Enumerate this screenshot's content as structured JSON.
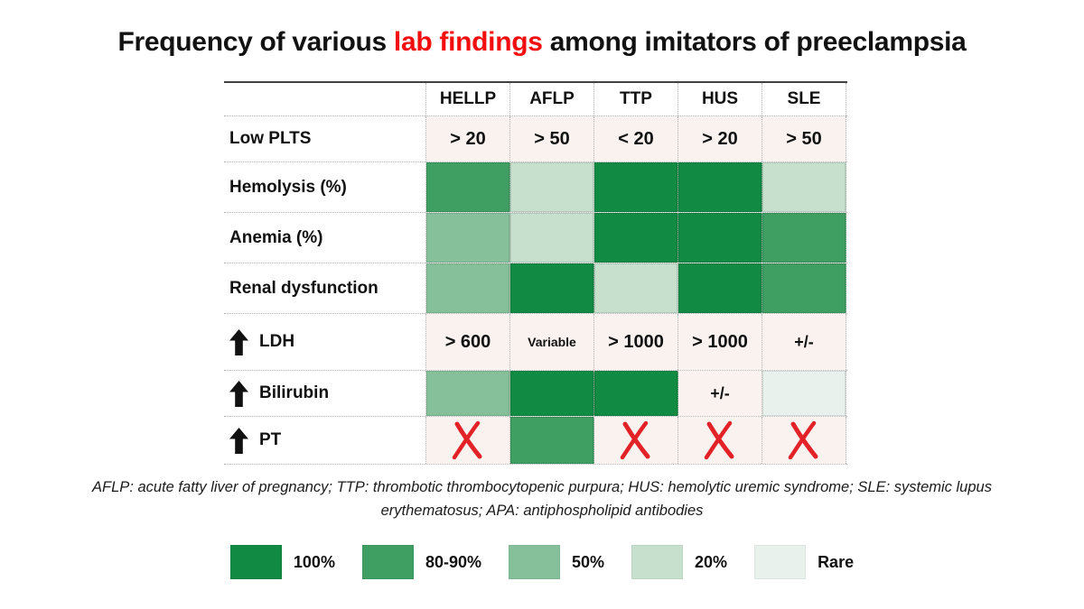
{
  "title": {
    "pre": "Frequency of various ",
    "highlight": "lab findings",
    "post": " among imitators of preeclampsia"
  },
  "colors": {
    "levels": {
      "100": "#118a43",
      "80-90": "#3f9e62",
      "50": "#86c09a",
      "20": "#c7e0ce",
      "rare": "#e9f1ec"
    },
    "value_bg": "#f9f2ef",
    "x_red": "#e32227",
    "title_red": "#f40d0d",
    "arrow_black": "#111111"
  },
  "table": {
    "columns": [
      "HELLP",
      "AFLP",
      "TTP",
      "HUS",
      "SLE"
    ],
    "rows": [
      {
        "label": "Low PLTS",
        "arrow": false,
        "cells": [
          {
            "t": "val",
            "text": "> 20"
          },
          {
            "t": "val",
            "text": "> 50"
          },
          {
            "t": "val",
            "text": "< 20"
          },
          {
            "t": "val",
            "text": "> 20"
          },
          {
            "t": "val",
            "text": "> 50"
          }
        ]
      },
      {
        "label": "Hemolysis (%)",
        "arrow": false,
        "cells": [
          {
            "t": "lvl",
            "level": "80-90"
          },
          {
            "t": "lvl",
            "level": "20"
          },
          {
            "t": "lvl",
            "level": "100"
          },
          {
            "t": "lvl",
            "level": "100"
          },
          {
            "t": "lvl",
            "level": "20"
          }
        ]
      },
      {
        "label": "Anemia (%)",
        "arrow": false,
        "cells": [
          {
            "t": "lvl",
            "level": "50"
          },
          {
            "t": "lvl",
            "level": "20"
          },
          {
            "t": "lvl",
            "level": "100"
          },
          {
            "t": "lvl",
            "level": "100"
          },
          {
            "t": "lvl",
            "level": "80-90"
          }
        ]
      },
      {
        "label": "Renal dysfunction",
        "arrow": false,
        "cells": [
          {
            "t": "lvl",
            "level": "50"
          },
          {
            "t": "lvl",
            "level": "100"
          },
          {
            "t": "lvl",
            "level": "20"
          },
          {
            "t": "lvl",
            "level": "100"
          },
          {
            "t": "lvl",
            "level": "80-90"
          }
        ]
      },
      {
        "label": "LDH",
        "arrow": true,
        "cells": [
          {
            "t": "val",
            "text": "> 600"
          },
          {
            "t": "val",
            "text": "Variable",
            "small": true
          },
          {
            "t": "val",
            "text": "> 1000"
          },
          {
            "t": "val",
            "text": "> 1000"
          },
          {
            "t": "val",
            "text": "+/-",
            "pm": true
          }
        ]
      },
      {
        "label": "Bilirubin",
        "arrow": true,
        "cells": [
          {
            "t": "lvl",
            "level": "50"
          },
          {
            "t": "lvl",
            "level": "100"
          },
          {
            "t": "lvl",
            "level": "100"
          },
          {
            "t": "val",
            "text": "+/-",
            "pm": true
          },
          {
            "t": "lvl",
            "level": "rare"
          }
        ]
      },
      {
        "label": "PT",
        "arrow": true,
        "cells": [
          {
            "t": "x"
          },
          {
            "t": "lvl",
            "level": "80-90"
          },
          {
            "t": "x"
          },
          {
            "t": "x"
          },
          {
            "t": "x"
          }
        ]
      }
    ]
  },
  "footnote": {
    "line1": "AFLP: acute fatty liver of pregnancy; TTP: thrombotic thrombocytopenic purpura; HUS: hemolytic uremic syndrome; SLE: systemic lupus",
    "line2": "erythematosus; APA: antiphospholipid antibodies"
  },
  "legend": {
    "items": [
      {
        "label": "100%",
        "level": "100"
      },
      {
        "label": "80-90%",
        "level": "80-90"
      },
      {
        "label": "50%",
        "level": "50"
      },
      {
        "label": "20%",
        "level": "20"
      },
      {
        "label": "Rare",
        "level": "rare"
      }
    ]
  },
  "chart_data": {
    "type": "heatmap",
    "title": "Frequency of various lab findings among imitators of preeclampsia",
    "columns": [
      "HELLP",
      "AFLP",
      "TTP",
      "HUS",
      "SLE"
    ],
    "rows": [
      "Low PLTS",
      "Hemolysis (%)",
      "Anemia (%)",
      "Renal dysfunction",
      "↑ LDH",
      "↑ Bilirubin",
      "↑ PT"
    ],
    "cells": [
      [
        "> 20",
        "> 50",
        "< 20",
        "> 20",
        "> 50"
      ],
      [
        "80-90%",
        "20%",
        "100%",
        "100%",
        "20%"
      ],
      [
        "50%",
        "20%",
        "100%",
        "100%",
        "80-90%"
      ],
      [
        "50%",
        "100%",
        "20%",
        "100%",
        "80-90%"
      ],
      [
        "> 600",
        "Variable",
        "> 1000",
        "> 1000",
        "+/-"
      ],
      [
        "50%",
        "100%",
        "100%",
        "+/-",
        "Rare"
      ],
      [
        "absent",
        "80-90%",
        "absent",
        "absent",
        "absent"
      ]
    ],
    "legend": [
      "100%",
      "80-90%",
      "50%",
      "20%",
      "Rare"
    ],
    "legend_position": "bottom"
  }
}
